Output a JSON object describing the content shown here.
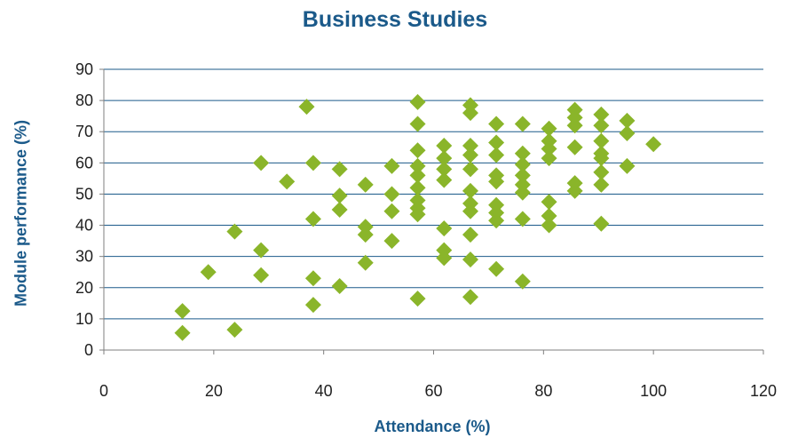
{
  "chart_data": {
    "type": "scatter",
    "title": "Business Studies",
    "xlabel": "Attendance (%)",
    "ylabel": "Module performance (%)",
    "xlim": [
      0,
      120
    ],
    "ylim": [
      0,
      90
    ],
    "x_ticks": [
      0,
      20,
      40,
      60,
      80,
      100,
      120
    ],
    "y_ticks": [
      0,
      10,
      20,
      30,
      40,
      50,
      60,
      70,
      80,
      90
    ],
    "grid": "horizontal",
    "legend": "none",
    "marker": "diamond",
    "colors": {
      "marker": "#8ab52a",
      "title": "#1b5a8a",
      "grid": "#1b5a8a"
    },
    "points": [
      [
        14.3,
        12.5
      ],
      [
        14.3,
        5.5
      ],
      [
        19,
        25
      ],
      [
        23.8,
        38
      ],
      [
        23.8,
        6.5
      ],
      [
        28.6,
        60
      ],
      [
        28.6,
        32
      ],
      [
        28.6,
        24
      ],
      [
        33.3,
        54
      ],
      [
        36.9,
        78
      ],
      [
        38.1,
        60
      ],
      [
        38.1,
        42
      ],
      [
        38.1,
        23
      ],
      [
        38.1,
        14.5
      ],
      [
        42.9,
        58
      ],
      [
        42.9,
        49.5
      ],
      [
        42.9,
        45
      ],
      [
        42.9,
        20.5
      ],
      [
        47.6,
        53
      ],
      [
        47.6,
        39.5
      ],
      [
        47.6,
        37
      ],
      [
        47.6,
        28
      ],
      [
        52.4,
        59
      ],
      [
        52.4,
        50
      ],
      [
        52.4,
        44.5
      ],
      [
        52.4,
        35
      ],
      [
        57.1,
        79.5
      ],
      [
        57.1,
        72.5
      ],
      [
        57.1,
        64
      ],
      [
        57.1,
        59
      ],
      [
        57.1,
        56
      ],
      [
        57.1,
        52
      ],
      [
        57.1,
        48
      ],
      [
        57.1,
        45.5
      ],
      [
        57.1,
        43.5
      ],
      [
        57.1,
        16.5
      ],
      [
        61.9,
        65.5
      ],
      [
        61.9,
        61.5
      ],
      [
        61.9,
        58
      ],
      [
        61.9,
        54.5
      ],
      [
        61.9,
        39
      ],
      [
        61.9,
        32
      ],
      [
        61.9,
        29.5
      ],
      [
        66.7,
        78.5
      ],
      [
        66.7,
        76
      ],
      [
        66.7,
        65.5
      ],
      [
        66.7,
        62.5
      ],
      [
        66.7,
        58
      ],
      [
        66.7,
        51
      ],
      [
        66.7,
        47
      ],
      [
        66.7,
        44.5
      ],
      [
        66.7,
        37
      ],
      [
        66.7,
        29
      ],
      [
        66.7,
        17
      ],
      [
        71.4,
        72.5
      ],
      [
        71.4,
        66.5
      ],
      [
        71.4,
        62.5
      ],
      [
        71.4,
        56
      ],
      [
        71.4,
        54
      ],
      [
        71.4,
        46.5
      ],
      [
        71.4,
        44
      ],
      [
        71.4,
        41.5
      ],
      [
        71.4,
        26
      ],
      [
        76.2,
        72.5
      ],
      [
        76.2,
        63
      ],
      [
        76.2,
        59.5
      ],
      [
        76.2,
        56
      ],
      [
        76.2,
        53
      ],
      [
        76.2,
        50.5
      ],
      [
        76.2,
        42
      ],
      [
        76.2,
        22
      ],
      [
        81,
        71
      ],
      [
        81,
        67
      ],
      [
        81,
        64.5
      ],
      [
        81,
        61.5
      ],
      [
        81,
        47.5
      ],
      [
        81,
        43
      ],
      [
        81,
        40
      ],
      [
        85.7,
        77
      ],
      [
        85.7,
        74.5
      ],
      [
        85.7,
        72
      ],
      [
        85.7,
        65
      ],
      [
        85.7,
        53.5
      ],
      [
        85.7,
        51
      ],
      [
        90.5,
        75.5
      ],
      [
        90.5,
        72
      ],
      [
        90.5,
        67
      ],
      [
        90.5,
        63
      ],
      [
        90.5,
        61.5
      ],
      [
        90.5,
        57
      ],
      [
        90.5,
        53
      ],
      [
        90.5,
        40.5
      ],
      [
        95.2,
        73.5
      ],
      [
        95.2,
        69.5
      ],
      [
        95.2,
        59
      ],
      [
        100,
        66
      ]
    ]
  }
}
